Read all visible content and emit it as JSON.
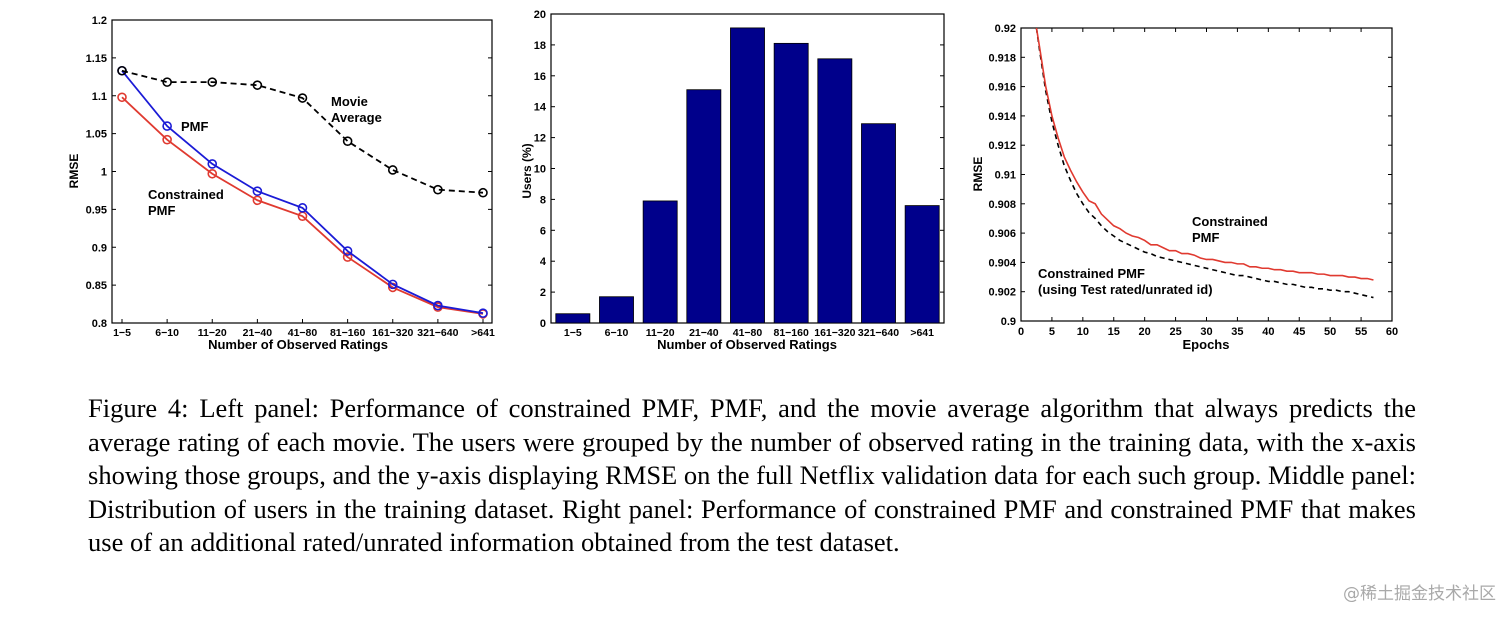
{
  "chart_data": [
    {
      "type": "line",
      "title": "",
      "xlabel": "Number of Observed Ratings",
      "ylabel": "RMSE",
      "ylim": [
        0.8,
        1.2
      ],
      "yticks": [
        "0.8",
        "0.85",
        "0.9",
        "0.95",
        "1",
        "1.05",
        "1.1",
        "1.15",
        "1.2"
      ],
      "categories": [
        "1−5",
        "6−10",
        "11−20",
        "21−40",
        "41−80",
        "81−160",
        "161−320",
        "321−640",
        ">641"
      ],
      "series": [
        {
          "name": "Movie Average",
          "color": "#000000",
          "style": "dashed",
          "values": [
            1.133,
            1.118,
            1.118,
            1.114,
            1.097,
            1.04,
            1.002,
            0.976,
            0.972
          ]
        },
        {
          "name": "PMF",
          "color": "#1b1bd6",
          "style": "solid",
          "values": [
            1.133,
            1.06,
            1.01,
            0.974,
            0.952,
            0.895,
            0.851,
            0.823,
            0.813
          ]
        },
        {
          "name": "Constrained PMF",
          "color": "#e03a30",
          "style": "solid",
          "values": [
            1.098,
            1.042,
            0.997,
            0.962,
            0.941,
            0.887,
            0.847,
            0.821,
            0.812
          ]
        }
      ],
      "annotations": [
        {
          "lines": [
            "Movie",
            "Average"
          ]
        },
        {
          "lines": [
            "PMF"
          ]
        },
        {
          "lines": [
            "Constrained",
            "PMF"
          ]
        }
      ]
    },
    {
      "type": "bar",
      "title": "",
      "xlabel": "Number of Observed Ratings",
      "ylabel": "Users (%)",
      "ylim": [
        0,
        20
      ],
      "yticks": [
        "0",
        "2",
        "4",
        "6",
        "8",
        "10",
        "12",
        "14",
        "16",
        "18",
        "20"
      ],
      "categories": [
        "1−5",
        "6−10",
        "11−20",
        "21−40",
        "41−80",
        "81−160",
        "161−320",
        "321−640",
        ">641"
      ],
      "values": [
        0.6,
        1.7,
        7.9,
        15.1,
        19.1,
        18.1,
        17.1,
        12.9,
        7.6
      ],
      "color": "#00008b"
    },
    {
      "type": "line",
      "title": "",
      "xlabel": "Epochs",
      "ylabel": "RMSE",
      "xlim": [
        0,
        60
      ],
      "ylim": [
        0.9,
        0.92
      ],
      "xticks": [
        "0",
        "5",
        "10",
        "15",
        "20",
        "25",
        "30",
        "35",
        "40",
        "45",
        "50",
        "55",
        "60"
      ],
      "yticks": [
        "0.9",
        "0.902",
        "0.904",
        "0.906",
        "0.908",
        "0.91",
        "0.912",
        "0.914",
        "0.916",
        "0.918",
        "0.92"
      ],
      "series": [
        {
          "name": "Constrained PMF",
          "color": "#e03a30",
          "style": "solid",
          "x": [
            2.5,
            3,
            4,
            5,
            6,
            7,
            8,
            9,
            10,
            11,
            12,
            13,
            14,
            15,
            16,
            17,
            18,
            19,
            20,
            21,
            22,
            23,
            24,
            25,
            26,
            27,
            28,
            29,
            30,
            31,
            32,
            33,
            34,
            35,
            36,
            37,
            38,
            39,
            40,
            41,
            42,
            43,
            44,
            45,
            46,
            47,
            48,
            49,
            50,
            51,
            52,
            53,
            54,
            55,
            56,
            57
          ],
          "y": [
            0.92,
            0.9187,
            0.916,
            0.914,
            0.9125,
            0.9112,
            0.9103,
            0.9095,
            0.9088,
            0.9082,
            0.908,
            0.9073,
            0.9069,
            0.9065,
            0.9063,
            0.906,
            0.9058,
            0.9057,
            0.9055,
            0.9052,
            0.9052,
            0.905,
            0.9048,
            0.9048,
            0.9046,
            0.9046,
            0.9045,
            0.9043,
            0.9042,
            0.9042,
            0.9041,
            0.904,
            0.904,
            0.9039,
            0.9039,
            0.9037,
            0.9037,
            0.9036,
            0.9036,
            0.9035,
            0.9035,
            0.9034,
            0.9034,
            0.9033,
            0.9033,
            0.9033,
            0.9032,
            0.9032,
            0.9031,
            0.9031,
            0.9031,
            0.903,
            0.903,
            0.9029,
            0.9029,
            0.9028
          ]
        },
        {
          "name": "Constrained PMF (using Test rated/unrated id)",
          "color": "#000000",
          "style": "dashed",
          "x": [
            2.5,
            3,
            4,
            5,
            6,
            7,
            8,
            9,
            10,
            11,
            12,
            13,
            14,
            15,
            16,
            17,
            18,
            19,
            20,
            21,
            22,
            23,
            24,
            25,
            26,
            27,
            28,
            29,
            30,
            31,
            32,
            33,
            34,
            35,
            36,
            37,
            38,
            39,
            40,
            41,
            42,
            43,
            44,
            45,
            46,
            47,
            48,
            49,
            50,
            51,
            52,
            53,
            54,
            55,
            56,
            57
          ],
          "y": [
            0.92,
            0.9185,
            0.9157,
            0.9136,
            0.912,
            0.9106,
            0.9096,
            0.9087,
            0.908,
            0.9074,
            0.907,
            0.9065,
            0.9061,
            0.9058,
            0.9055,
            0.9053,
            0.9051,
            0.9049,
            0.9047,
            0.9046,
            0.9044,
            0.9043,
            0.9042,
            0.9041,
            0.904,
            0.9039,
            0.9038,
            0.9037,
            0.9036,
            0.9035,
            0.9034,
            0.9033,
            0.9032,
            0.9031,
            0.9031,
            0.903,
            0.9029,
            0.9028,
            0.9027,
            0.9027,
            0.9026,
            0.9025,
            0.9025,
            0.9024,
            0.9023,
            0.9023,
            0.9022,
            0.9022,
            0.9021,
            0.9021,
            0.902,
            0.902,
            0.9019,
            0.9018,
            0.9017,
            0.9016
          ]
        }
      ],
      "annotations": [
        {
          "lines": [
            "Constrained",
            "PMF"
          ]
        },
        {
          "lines": [
            "Constrained PMF",
            "(using Test rated/unrated id)"
          ]
        }
      ]
    }
  ],
  "caption": {
    "label": "Figure 4:",
    "text": "Left panel: Performance of constrained PMF, PMF, and the movie average algorithm that always predicts the average rating of each movie. The users were grouped by the number of observed rating in the training data, with the x-axis showing those groups, and the y-axis displaying RMSE on the full Netflix validation data for each such group. Middle panel: Distribution of users in the training dataset. Right panel: Performance of constrained PMF and constrained PMF that makes use of an additional rated/unrated information obtained from the test dataset."
  },
  "watermark": "@稀土掘金技术社区"
}
